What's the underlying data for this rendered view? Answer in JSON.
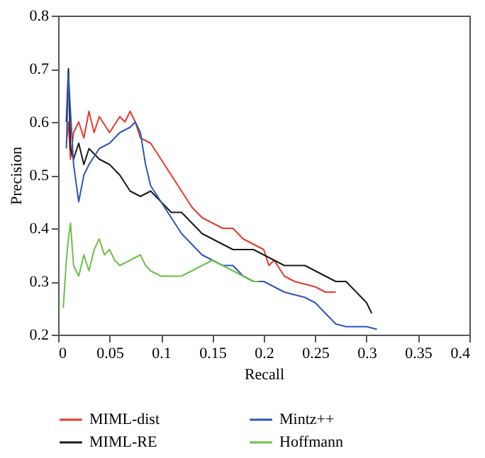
{
  "chart_data": {
    "type": "line",
    "xlabel": "Recall",
    "ylabel": "Precision",
    "xlim": [
      0,
      0.4
    ],
    "ylim": [
      0.2,
      0.8
    ],
    "xticks": [
      0,
      0.05,
      0.1,
      0.15,
      0.2,
      0.25,
      0.3,
      0.35,
      0.4
    ],
    "yticks": [
      0.2,
      0.3,
      0.4,
      0.5,
      0.6,
      0.7,
      0.8
    ],
    "grid": false,
    "legend": "bottom",
    "marker": "none",
    "line_style": "solid",
    "series": [
      {
        "name": "MIML-dist",
        "color": "#e8392c",
        "x": [
          0.008,
          0.01,
          0.012,
          0.015,
          0.02,
          0.025,
          0.03,
          0.035,
          0.04,
          0.05,
          0.06,
          0.065,
          0.07,
          0.075,
          0.08,
          0.09,
          0.1,
          0.11,
          0.12,
          0.13,
          0.14,
          0.15,
          0.16,
          0.17,
          0.18,
          0.19,
          0.2,
          0.205,
          0.21,
          0.22,
          0.23,
          0.25,
          0.26,
          0.27
        ],
        "values": [
          0.56,
          0.6,
          0.53,
          0.58,
          0.6,
          0.57,
          0.62,
          0.58,
          0.61,
          0.58,
          0.61,
          0.6,
          0.62,
          0.6,
          0.57,
          0.56,
          0.53,
          0.5,
          0.47,
          0.44,
          0.42,
          0.41,
          0.4,
          0.4,
          0.38,
          0.37,
          0.36,
          0.33,
          0.34,
          0.31,
          0.3,
          0.29,
          0.28,
          0.28
        ]
      },
      {
        "name": "MIML-RE",
        "color": "#1a1a1a",
        "x": [
          0.008,
          0.01,
          0.012,
          0.015,
          0.02,
          0.025,
          0.03,
          0.04,
          0.05,
          0.06,
          0.07,
          0.08,
          0.09,
          0.1,
          0.11,
          0.12,
          0.13,
          0.14,
          0.15,
          0.16,
          0.17,
          0.18,
          0.19,
          0.2,
          0.22,
          0.24,
          0.25,
          0.26,
          0.27,
          0.28,
          0.29,
          0.3,
          0.305
        ],
        "values": [
          0.6,
          0.7,
          0.55,
          0.53,
          0.56,
          0.52,
          0.55,
          0.53,
          0.52,
          0.5,
          0.47,
          0.46,
          0.47,
          0.45,
          0.43,
          0.43,
          0.41,
          0.39,
          0.38,
          0.37,
          0.36,
          0.36,
          0.36,
          0.35,
          0.33,
          0.33,
          0.32,
          0.31,
          0.3,
          0.3,
          0.28,
          0.26,
          0.24
        ]
      },
      {
        "name": "Mintz++",
        "color": "#2f56b5",
        "x": [
          0.008,
          0.01,
          0.012,
          0.015,
          0.02,
          0.025,
          0.03,
          0.04,
          0.05,
          0.06,
          0.07,
          0.075,
          0.08,
          0.085,
          0.09,
          0.1,
          0.11,
          0.12,
          0.13,
          0.14,
          0.15,
          0.16,
          0.17,
          0.18,
          0.19,
          0.2,
          0.21,
          0.22,
          0.24,
          0.25,
          0.26,
          0.27,
          0.28,
          0.3,
          0.31
        ],
        "values": [
          0.55,
          0.69,
          0.62,
          0.52,
          0.45,
          0.5,
          0.52,
          0.55,
          0.56,
          0.58,
          0.59,
          0.6,
          0.58,
          0.52,
          0.48,
          0.45,
          0.42,
          0.39,
          0.37,
          0.35,
          0.34,
          0.33,
          0.33,
          0.31,
          0.3,
          0.3,
          0.29,
          0.28,
          0.27,
          0.26,
          0.24,
          0.22,
          0.215,
          0.215,
          0.21
        ]
      },
      {
        "name": "Hoffmann",
        "color": "#6cc04a",
        "x": [
          0.005,
          0.008,
          0.01,
          0.012,
          0.015,
          0.02,
          0.025,
          0.03,
          0.035,
          0.04,
          0.045,
          0.05,
          0.055,
          0.06,
          0.07,
          0.08,
          0.085,
          0.09,
          0.1,
          0.11,
          0.12,
          0.13,
          0.14,
          0.15,
          0.16,
          0.17,
          0.18,
          0.19,
          0.195
        ],
        "values": [
          0.25,
          0.34,
          0.38,
          0.41,
          0.33,
          0.31,
          0.35,
          0.32,
          0.36,
          0.38,
          0.35,
          0.36,
          0.34,
          0.33,
          0.34,
          0.35,
          0.33,
          0.32,
          0.31,
          0.31,
          0.31,
          0.32,
          0.33,
          0.34,
          0.33,
          0.32,
          0.31,
          0.3,
          0.3
        ]
      }
    ]
  }
}
